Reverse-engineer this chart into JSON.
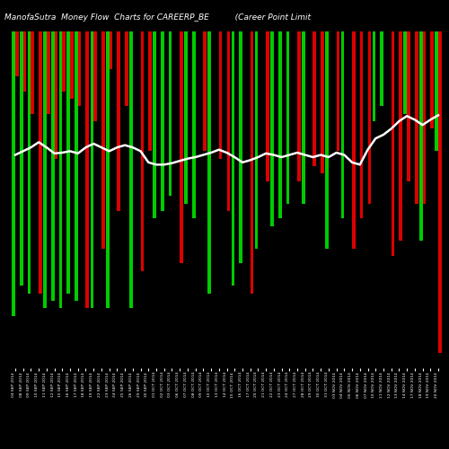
{
  "title": "ManofaSutra  Money Flow  Charts for CAREERP_BE          (Career Point Limit",
  "background_color": "#000000",
  "green_color": "#00cc00",
  "red_color": "#dd0000",
  "line_color": "#ffffff",
  "pairs": [
    {
      "g": 380,
      "r": 60
    },
    {
      "g": 340,
      "r": 80
    },
    {
      "g": 350,
      "r": 110
    },
    {
      "g": 0,
      "r": 350
    },
    {
      "g": 370,
      "r": 110
    },
    {
      "g": 360,
      "r": 170
    },
    {
      "g": 370,
      "r": 80
    },
    {
      "g": 350,
      "r": 90
    },
    {
      "g": 360,
      "r": 100
    },
    {
      "g": 0,
      "r": 370
    },
    {
      "g": 370,
      "r": 120
    },
    {
      "g": 0,
      "r": 290
    },
    {
      "g": 370,
      "r": 50
    },
    {
      "g": 0,
      "r": 240
    },
    {
      "g": 0,
      "r": 100
    },
    {
      "g": 370,
      "r": 0
    },
    {
      "g": 0,
      "r": 320
    },
    {
      "g": 0,
      "r": 160
    },
    {
      "g": 250,
      "r": 0
    },
    {
      "g": 240,
      "r": 0
    },
    {
      "g": 220,
      "r": 0
    },
    {
      "g": 0,
      "r": 310
    },
    {
      "g": 230,
      "r": 0
    },
    {
      "g": 250,
      "r": 0
    },
    {
      "g": 0,
      "r": 160
    },
    {
      "g": 350,
      "r": 0
    },
    {
      "g": 0,
      "r": 170
    },
    {
      "g": 0,
      "r": 240
    },
    {
      "g": 340,
      "r": 0
    },
    {
      "g": 310,
      "r": 0
    },
    {
      "g": 0,
      "r": 350
    },
    {
      "g": 290,
      "r": 0
    },
    {
      "g": 0,
      "r": 200
    },
    {
      "g": 260,
      "r": 0
    },
    {
      "g": 250,
      "r": 0
    },
    {
      "g": 230,
      "r": 0
    },
    {
      "g": 0,
      "r": 200
    },
    {
      "g": 230,
      "r": 0
    },
    {
      "g": 0,
      "r": 180
    },
    {
      "g": 0,
      "r": 190
    },
    {
      "g": 290,
      "r": 0
    },
    {
      "g": 0,
      "r": 160
    },
    {
      "g": 250,
      "r": 0
    },
    {
      "g": 0,
      "r": 290
    },
    {
      "g": 0,
      "r": 250
    },
    {
      "g": 0,
      "r": 230
    },
    {
      "g": 120,
      "r": 0
    },
    {
      "g": 100,
      "r": 0
    },
    {
      "g": 0,
      "r": 300
    },
    {
      "g": 0,
      "r": 280
    },
    {
      "g": 110,
      "r": 200
    },
    {
      "g": 0,
      "r": 230
    },
    {
      "g": 280,
      "r": 230
    },
    {
      "g": 0,
      "r": 130
    },
    {
      "g": 160,
      "r": 430
    }
  ],
  "line_y": [
    165,
    160,
    155,
    148,
    155,
    163,
    162,
    160,
    163,
    155,
    150,
    155,
    160,
    155,
    152,
    155,
    160,
    175,
    178,
    178,
    176,
    173,
    170,
    168,
    165,
    162,
    158,
    162,
    168,
    175,
    172,
    168,
    163,
    165,
    168,
    165,
    162,
    165,
    168,
    165,
    168,
    162,
    165,
    175,
    178,
    158,
    143,
    138,
    130,
    120,
    113,
    118,
    125,
    118,
    112
  ],
  "xlabels": [
    "04 SEP 2014",
    "08 SEP 2014",
    "09 SEP 2014",
    "10 SEP 2014",
    "11 SEP 2014",
    "12 SEP 2014",
    "15 SEP 2014",
    "16 SEP 2014",
    "17 SEP 2014",
    "18 SEP 2014",
    "19 SEP 2014",
    "22 SEP 2014",
    "23 SEP 2014",
    "24 SEP 2014",
    "25 SEP 2014",
    "26 SEP 2014",
    "29 SEP 2014",
    "30 SEP 2014",
    "01 OCT 2014",
    "02 OCT 2014",
    "03 OCT 2014",
    "06 OCT 2014",
    "07 OCT 2014",
    "08 OCT 2014",
    "09 OCT 2014",
    "10 OCT 2014",
    "13 OCT 2014",
    "14 OCT 2014",
    "15 OCT 2014",
    "16 OCT 2014",
    "17 OCT 2014",
    "20 OCT 2014",
    "21 OCT 2014",
    "22 OCT 2014",
    "23 OCT 2014",
    "24 OCT 2014",
    "27 OCT 2014",
    "28 OCT 2014",
    "29 OCT 2014",
    "30 OCT 2014",
    "31 OCT 2014",
    "03 NOV 2014",
    "04 NOV 2014",
    "05 NOV 2014",
    "06 NOV 2014",
    "07 NOV 2014",
    "10 NOV 2014",
    "11 NOV 2014",
    "12 NOV 2014",
    "13 NOV 2014",
    "14 NOV 2014",
    "17 NOV 2014",
    "18 NOV 2014",
    "19 NOV 2014",
    "20 NOV 2014"
  ]
}
